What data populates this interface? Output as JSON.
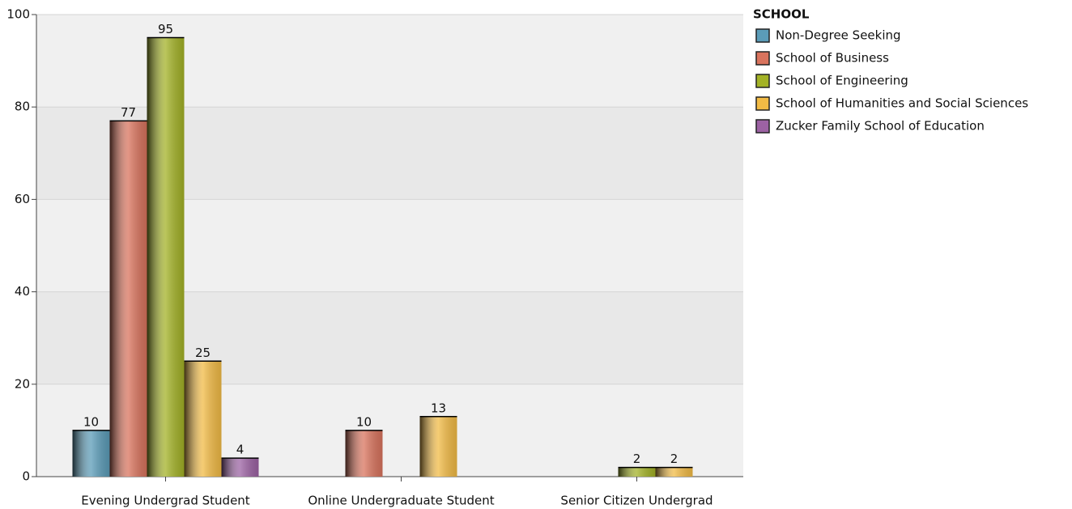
{
  "chart_data": {
    "type": "bar",
    "legend_title": "SCHOOL",
    "categories": [
      "Evening Undergrad Student",
      "Online Undergraduate Student",
      "Senior Citizen Undergrad"
    ],
    "series": [
      {
        "name": "Non-Degree Seeking",
        "color": "#5b9cb8",
        "values": [
          10,
          null,
          null
        ]
      },
      {
        "name": "School of Business",
        "color": "#d9735d",
        "values": [
          77,
          10,
          null
        ]
      },
      {
        "name": "School of Engineering",
        "color": "#a3b226",
        "values": [
          95,
          null,
          2
        ]
      },
      {
        "name": "School of Humanities and Social Sciences",
        "color": "#f2bb45",
        "values": [
          25,
          13,
          2
        ]
      },
      {
        "name": "Zucker Family School of Education",
        "color": "#9c62a3",
        "values": [
          4,
          null,
          null
        ]
      }
    ],
    "ylim": [
      0,
      100
    ],
    "yticks": [
      0,
      20,
      40,
      60,
      80,
      100
    ],
    "grid": true,
    "legend": "right"
  }
}
